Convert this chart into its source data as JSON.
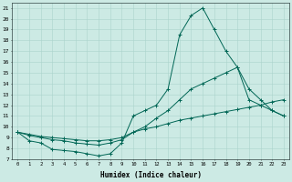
{
  "xlabel": "Humidex (Indice chaleur)",
  "bg_color": "#cceae4",
  "grid_color": "#aad4cc",
  "line_color": "#006655",
  "xlim": [
    -0.5,
    23.5
  ],
  "ylim": [
    7,
    21.5
  ],
  "xtick_labels": [
    "0",
    "1",
    "2",
    "3",
    "4",
    "5",
    "6",
    "7",
    "8",
    "9",
    "10",
    "11",
    "12",
    "13",
    "14",
    "15",
    "16",
    "17",
    "18",
    "19",
    "20",
    "21",
    "22",
    "23"
  ],
  "ytick_labels": [
    "7",
    "8",
    "9",
    "10",
    "11",
    "12",
    "13",
    "14",
    "15",
    "16",
    "17",
    "18",
    "19",
    "20",
    "21"
  ],
  "series": [
    {
      "x": [
        0,
        1,
        2,
        3,
        4,
        5,
        6,
        7,
        8,
        9,
        10,
        11,
        12,
        13,
        14,
        15,
        16,
        17,
        18,
        19,
        20,
        21,
        22,
        23
      ],
      "y": [
        9.5,
        8.7,
        8.5,
        7.9,
        7.8,
        7.7,
        7.5,
        7.3,
        7.5,
        8.5,
        11.0,
        11.5,
        12.0,
        13.5,
        18.5,
        20.3,
        21.0,
        19.0,
        17.0,
        15.5,
        12.5,
        12.0,
        11.5,
        11.0
      ]
    },
    {
      "x": [
        0,
        1,
        2,
        3,
        4,
        5,
        6,
        7,
        8,
        9,
        10,
        11,
        12,
        13,
        14,
        15,
        16,
        17,
        18,
        19,
        20,
        21,
        22,
        23
      ],
      "y": [
        9.5,
        9.2,
        9.0,
        8.8,
        8.7,
        8.5,
        8.4,
        8.3,
        8.5,
        8.8,
        9.5,
        10.0,
        10.8,
        11.5,
        12.5,
        13.5,
        14.0,
        14.5,
        15.0,
        15.5,
        13.5,
        12.5,
        11.5,
        11.0
      ]
    },
    {
      "x": [
        0,
        1,
        2,
        3,
        4,
        5,
        6,
        7,
        8,
        9,
        10,
        11,
        12,
        13,
        14,
        15,
        16,
        17,
        18,
        19,
        20,
        21,
        22,
        23
      ],
      "y": [
        9.5,
        9.3,
        9.1,
        9.0,
        8.9,
        8.8,
        8.7,
        8.7,
        8.8,
        9.0,
        9.5,
        9.8,
        10.0,
        10.3,
        10.6,
        10.8,
        11.0,
        11.2,
        11.4,
        11.6,
        11.8,
        12.0,
        12.3,
        12.5
      ]
    }
  ]
}
